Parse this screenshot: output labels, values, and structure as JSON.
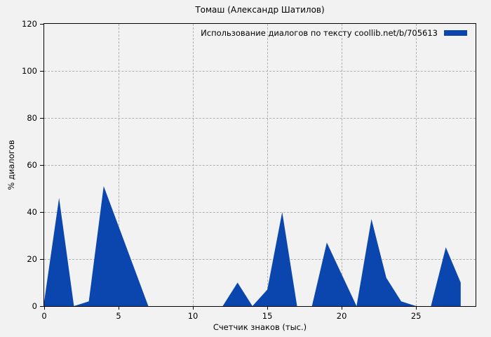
{
  "page": {
    "background_color": "#f2f2f2"
  },
  "chart": {
    "title": "Томаш (Александр Шатилов)",
    "legend_label": "Использование диалогов по тексту coollib.net/b/705613",
    "xlabel": "Счетчик знаков (тыс.)",
    "ylabel": "% диалогов"
  },
  "chart_data": {
    "type": "area",
    "title": "Томаш (Александр Шатилов)",
    "xlabel": "Счетчик знаков (тыс.)",
    "ylabel": "% диалогов",
    "xlim": [
      0,
      29
    ],
    "ylim": [
      0,
      120
    ],
    "x_ticks": [
      0,
      5,
      10,
      15,
      20,
      25
    ],
    "y_ticks": [
      0,
      20,
      40,
      60,
      80,
      100,
      120
    ],
    "grid": true,
    "legend_position": "top-right-inside",
    "series": [
      {
        "name": "Использование диалогов по тексту coollib.net/b/705613",
        "color": "#0a46ad",
        "points": [
          [
            0,
            2
          ],
          [
            1,
            46
          ],
          [
            2,
            0
          ],
          [
            3,
            2
          ],
          [
            4,
            51
          ],
          [
            7,
            0
          ],
          [
            12,
            0
          ],
          [
            13,
            10
          ],
          [
            14,
            0
          ],
          [
            15,
            7
          ],
          [
            16,
            40
          ],
          [
            17,
            0
          ],
          [
            18,
            0
          ],
          [
            19,
            27
          ],
          [
            21,
            0
          ],
          [
            22,
            37
          ],
          [
            23,
            12
          ],
          [
            24,
            2
          ],
          [
            25,
            0
          ],
          [
            26,
            0
          ],
          [
            27,
            25
          ],
          [
            28,
            10
          ]
        ]
      }
    ],
    "colors": {
      "fill": "#0a46ad",
      "grid": "#b0b0b0",
      "axis": "#000000",
      "background": "#f2f2f2"
    }
  }
}
